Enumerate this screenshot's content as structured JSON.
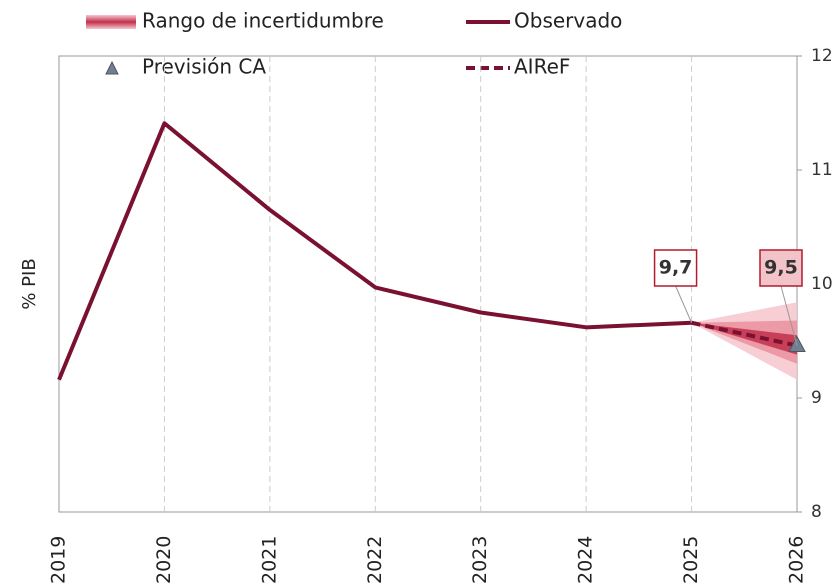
{
  "chart_data": {
    "type": "line",
    "y_axis_label": "% PIB",
    "categories": [
      "2019",
      "2020",
      "2021",
      "2022",
      "2023",
      "2024",
      "2025",
      "2026"
    ],
    "ylim": [
      8,
      12
    ],
    "yticks": [
      8,
      9,
      10,
      11,
      12
    ],
    "y_axis_side": "right",
    "grid": "x",
    "uncertainty": {
      "name": "Rango de incertidumbre",
      "x": [
        "2025",
        "2026"
      ],
      "bands": [
        {
          "lower": [
            9.66,
            9.16
          ],
          "upper": [
            9.66,
            9.84
          ],
          "color": "#f5c6cd"
        },
        {
          "lower": [
            9.66,
            9.3
          ],
          "upper": [
            9.66,
            9.68
          ],
          "color": "#e9909d"
        },
        {
          "lower": [
            9.66,
            9.38
          ],
          "upper": [
            9.66,
            9.55
          ],
          "color": "#c22f4c"
        }
      ]
    },
    "series": [
      {
        "name": "Observado",
        "color": "#7b1130",
        "style": "solid",
        "values": [
          9.16,
          11.41,
          10.65,
          9.97,
          9.75,
          9.62,
          9.66,
          null
        ],
        "value_labels": [
          null,
          null,
          null,
          null,
          null,
          null,
          "9,7",
          null
        ]
      },
      {
        "name": "AIReF",
        "color": "#7b1130",
        "style": "dashed",
        "values": [
          null,
          null,
          null,
          null,
          null,
          null,
          9.66,
          9.46
        ]
      },
      {
        "name": "Previsión CA",
        "color": "#6f7f95",
        "style": "marker",
        "values": [
          null,
          null,
          null,
          null,
          null,
          null,
          null,
          9.46
        ],
        "value_labels": [
          null,
          null,
          null,
          null,
          null,
          null,
          null,
          "9,5"
        ]
      }
    ]
  }
}
